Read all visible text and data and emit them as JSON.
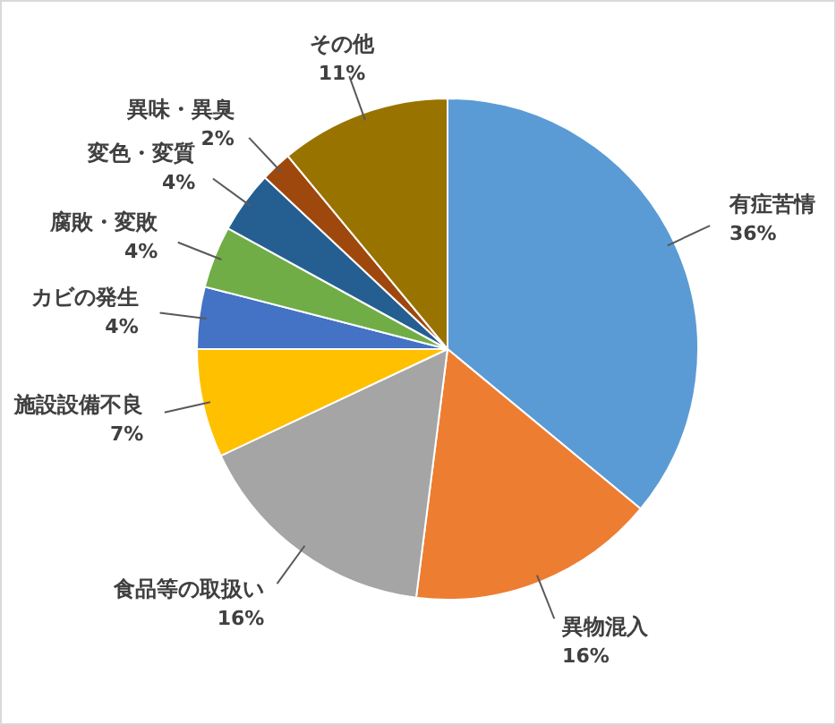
{
  "chart_data": {
    "type": "pie",
    "categories": [
      "有症苦情",
      "異物混入",
      "食品等の取扱い",
      "施設設備不良",
      "カビの発生",
      "腐敗・変敗",
      "変色・変質",
      "異味・異臭",
      "その他"
    ],
    "values": [
      36,
      16,
      16,
      7,
      4,
      4,
      4,
      2,
      11
    ],
    "colors": [
      "#5b9bd5",
      "#ed7d31",
      "#a5a5a5",
      "#ffc000",
      "#4472c4",
      "#70ad47",
      "#255e91",
      "#9e480e",
      "#997300"
    ],
    "value_labels": [
      "36%",
      "16%",
      "16%",
      "7%",
      "4%",
      "4%",
      "4%",
      "2%",
      "11%"
    ]
  }
}
